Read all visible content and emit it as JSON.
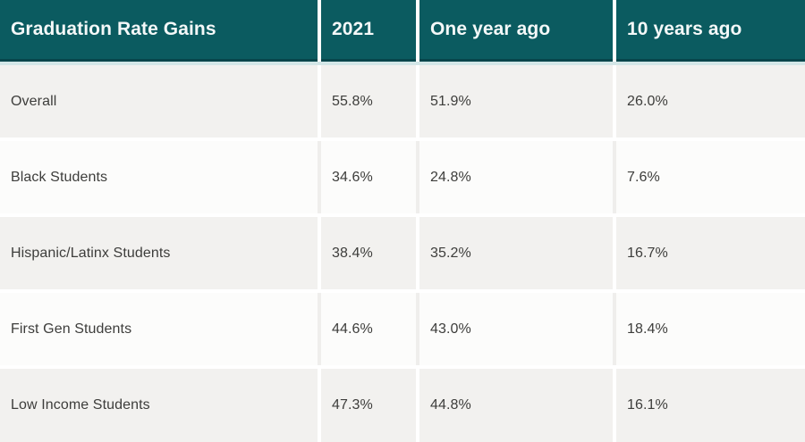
{
  "table": {
    "header": {
      "title": "Graduation Rate Gains",
      "columns": [
        "2021",
        "One year ago",
        "10 years ago"
      ]
    },
    "rows": [
      {
        "label": "Overall",
        "values": [
          "55.8%",
          "51.9%",
          "26.0%"
        ]
      },
      {
        "label": "Black Students",
        "values": [
          "34.6%",
          "24.8%",
          "7.6%"
        ]
      },
      {
        "label": "Hispanic/Latinx Students",
        "values": [
          "38.4%",
          "35.2%",
          "16.7%"
        ]
      },
      {
        "label": "First Gen Students",
        "values": [
          "44.6%",
          "43.0%",
          "18.4%"
        ]
      },
      {
        "label": "Low Income Students",
        "values": [
          "47.3%",
          "44.8%",
          "16.1%"
        ]
      }
    ],
    "colors": {
      "header_bg": "#0b5b60",
      "header_text": "#f4f8f8",
      "header_bottom_border": "#07454b",
      "header_glow": "#d3e6e7",
      "row_gray_bg": "#f2f1ef",
      "row_white_bg": "#fcfcfb",
      "body_text": "#3d3d3b",
      "gutter_white": "#ffffff",
      "gutter_gray": "#efeeec"
    }
  },
  "chart_data": {
    "type": "table",
    "title": "Graduation Rate Gains",
    "columns": [
      "2021",
      "One year ago",
      "10 years ago"
    ],
    "unit": "%",
    "rows": [
      {
        "label": "Overall",
        "values": [
          55.8,
          51.9,
          26.0
        ]
      },
      {
        "label": "Black Students",
        "values": [
          34.6,
          24.8,
          7.6
        ]
      },
      {
        "label": "Hispanic/Latinx Students",
        "values": [
          38.4,
          35.2,
          16.7
        ]
      },
      {
        "label": "First Gen Students",
        "values": [
          44.6,
          43.0,
          18.4
        ]
      },
      {
        "label": "Low Income Students",
        "values": [
          47.3,
          44.8,
          16.1
        ]
      }
    ]
  }
}
